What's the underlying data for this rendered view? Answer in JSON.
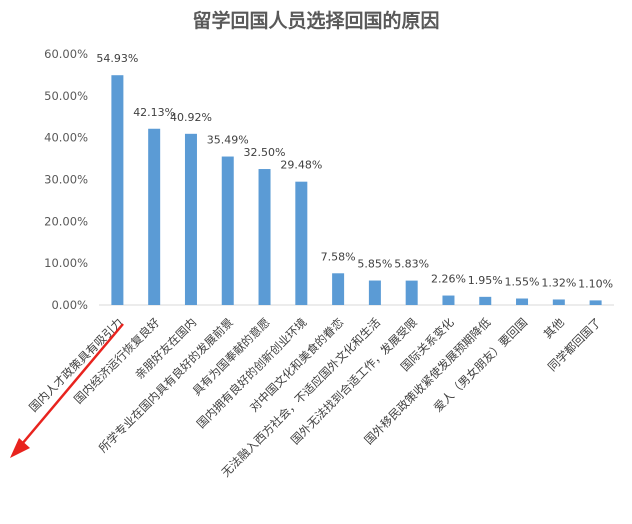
{
  "chart_data": {
    "type": "bar",
    "title": "留学回国人员选择回国的原因",
    "categories": [
      "国内人才政策具有吸引力",
      "国内经济运行恢复良好",
      "亲朋好友在国内",
      "所学专业在国内具有良好的发展前景",
      "具有为国奉献的意愿",
      "国内拥有良好的创新创业环境",
      "对中国文化和美食的眷恋",
      "无法融入西方社会，不适应国外文化和生活",
      "国外无法找到合适工作，发展受限",
      "国际关系变化",
      "国外移民政策收紧使发展预期降低",
      "爱人（男女朋友）要回国",
      "其他",
      "同学都回国了"
    ],
    "values": [
      54.93,
      42.13,
      40.92,
      35.49,
      32.5,
      29.48,
      7.58,
      5.85,
      5.83,
      2.26,
      1.95,
      1.55,
      1.32,
      1.1
    ],
    "data_labels": [
      "54.93%",
      "42.13%",
      "40.92%",
      "35.49%",
      "32.50%",
      "29.48%",
      "7.58%",
      "5.85%",
      "5.83%",
      "2.26%",
      "1.95%",
      "1.55%",
      "1.32%",
      "1.10%"
    ],
    "yticks": [
      "0.00%",
      "10.00%",
      "20.00%",
      "30.00%",
      "40.00%",
      "50.00%",
      "60.00%"
    ],
    "ylim": [
      0,
      60
    ],
    "grid": false,
    "bar_color": "#5b9bd5",
    "annotation": "red arrow pointing toward the first category label"
  }
}
